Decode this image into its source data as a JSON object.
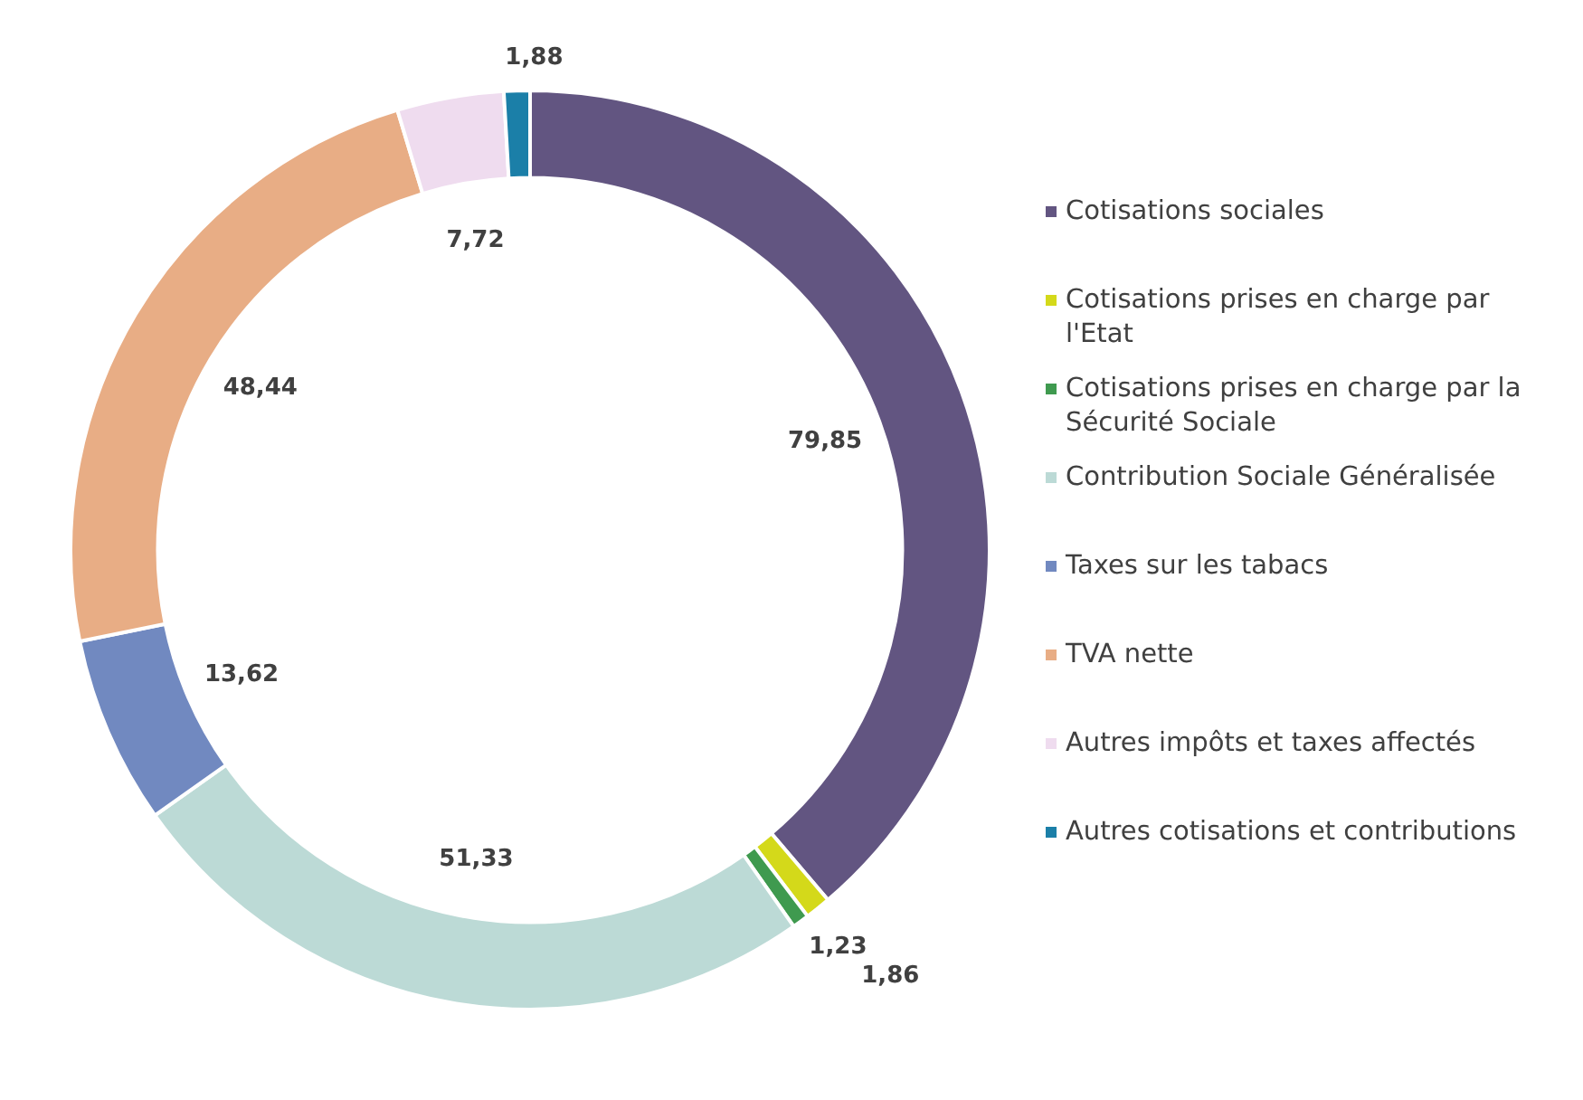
{
  "chart_data": {
    "type": "donut",
    "categories": [
      "Cotisations sociales",
      "Cotisations prises en charge par l'Etat",
      "Cotisations prises en charge par la Sécurité Sociale",
      "Contribution Sociale Généralisée",
      "Taxes sur les tabacs",
      "TVA nette",
      "Autres impôts et taxes affectés",
      "Autres cotisations et contributions"
    ],
    "values": [
      79.85,
      1.86,
      1.23,
      51.33,
      13.62,
      48.44,
      7.72,
      1.88
    ],
    "value_labels": [
      "79,85",
      "1,86",
      "1,23",
      "51,33",
      "13,62",
      "48,44",
      "7,72",
      "1,88"
    ],
    "colors": [
      "#625581",
      "#d4d91a",
      "#3f9a4f",
      "#bcdad6",
      "#7189c0",
      "#e8ad85",
      "#efdcef",
      "#1b7fa8"
    ],
    "legend": "right"
  }
}
